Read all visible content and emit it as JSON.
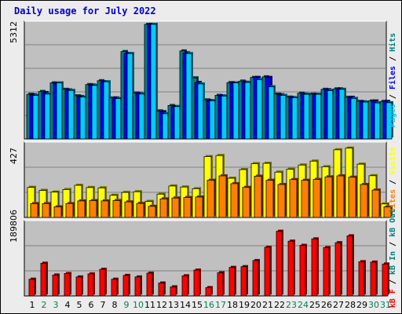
{
  "title": "Daily usage for July 2022",
  "chart_data": [
    {
      "type": "bar",
      "panel": "pages-files-hits",
      "categories": [
        "1",
        "2",
        "3",
        "4",
        "5",
        "6",
        "7",
        "8",
        "9",
        "10",
        "11",
        "12",
        "13",
        "14",
        "15",
        "16",
        "17",
        "18",
        "19",
        "20",
        "21",
        "22",
        "23",
        "24",
        "25",
        "26",
        "27",
        "28",
        "29",
        "30",
        "31"
      ],
      "weekend_days": [
        "2",
        "3",
        "9",
        "10",
        "16",
        "17",
        "23",
        "24",
        "30",
        "31"
      ],
      "ymax_label": "5312",
      "ylim": [
        0,
        5312
      ],
      "series": [
        {
          "name": "Pages",
          "color": "#008080",
          "values": [
            2070,
            2200,
            2600,
            2300,
            2000,
            2520,
            2700,
            1900,
            4050,
            2130,
            5312,
            1300,
            1550,
            4080,
            2830,
            1810,
            2020,
            2610,
            2680,
            2850,
            2880,
            2080,
            1940,
            2120,
            2080,
            2300,
            2320,
            1930,
            1740,
            1760,
            1740
          ]
        },
        {
          "name": "Files",
          "color": "#0000ff",
          "values": [
            2050,
            2150,
            2570,
            2270,
            1970,
            2500,
            2650,
            1900,
            3960,
            2100,
            5312,
            1260,
            1500,
            3990,
            2620,
            1780,
            2000,
            2600,
            2630,
            2850,
            2850,
            2050,
            1920,
            2080,
            2060,
            2280,
            2320,
            1930,
            1720,
            1760,
            1740
          ]
        },
        {
          "name": "Hits",
          "color": "#00ccff",
          "values": [
            2020,
            2080,
            2600,
            2250,
            1940,
            2480,
            2650,
            1870,
            3960,
            2080,
            5312,
            1170,
            1500,
            3960,
            2550,
            1770,
            1990,
            2600,
            2620,
            2750,
            2420,
            2020,
            1910,
            2070,
            2070,
            2240,
            2300,
            1880,
            1710,
            1670,
            1680
          ]
        }
      ]
    },
    {
      "type": "bar",
      "panel": "visits-sites",
      "categories": [
        "1",
        "2",
        "3",
        "4",
        "5",
        "6",
        "7",
        "8",
        "9",
        "10",
        "11",
        "12",
        "13",
        "14",
        "15",
        "16",
        "17",
        "18",
        "19",
        "20",
        "21",
        "22",
        "23",
        "24",
        "25",
        "26",
        "27",
        "28",
        "29",
        "30",
        "31"
      ],
      "ymax_label": "427",
      "ylim": [
        0,
        427
      ],
      "series": [
        {
          "name": "Visits",
          "color": "#ffff00",
          "values": [
            178,
            160,
            150,
            165,
            190,
            177,
            175,
            131,
            148,
            152,
            95,
            138,
            186,
            180,
            170,
            360,
            366,
            232,
            283,
            318,
            320,
            268,
            285,
            310,
            333,
            300,
            400,
            410,
            315,
            247,
            80
          ]
        },
        {
          "name": "Sites",
          "color": "#ff8000",
          "values": [
            82,
            82,
            63,
            82,
            98,
            100,
            98,
            100,
            92,
            83,
            66,
            110,
            115,
            118,
            121,
            220,
            246,
            200,
            178,
            244,
            220,
            195,
            224,
            220,
            225,
            240,
            246,
            238,
            195,
            162,
            63
          ]
        }
      ]
    },
    {
      "type": "bar",
      "panel": "kbytes",
      "categories": [
        "1",
        "2",
        "3",
        "4",
        "5",
        "6",
        "7",
        "8",
        "9",
        "10",
        "11",
        "12",
        "13",
        "14",
        "15",
        "16",
        "17",
        "18",
        "19",
        "20",
        "21",
        "22",
        "23",
        "24",
        "25",
        "26",
        "27",
        "28",
        "29",
        "30",
        "31"
      ],
      "ymax_label": "189806",
      "ylim": [
        0,
        189806
      ],
      "series": [
        {
          "name": "kB F",
          "color": "#ff0000",
          "values": [
            44000,
            86000,
            55000,
            59000,
            50000,
            58000,
            70000,
            44000,
            54000,
            50000,
            60000,
            34000,
            24000,
            53000,
            68000,
            22000,
            61000,
            75000,
            77000,
            93000,
            128000,
            170000,
            144000,
            133000,
            150000,
            127000,
            140000,
            158000,
            90000,
            89000,
            84000
          ]
        }
      ]
    }
  ],
  "legend": {
    "pages": "Pages",
    "files": "Files",
    "hits": "Hits",
    "visits": "Visits",
    "sites": "Sites",
    "kb_f": "kB F",
    "kb_in": "kB In",
    "kb_out": "kB Out",
    "sep": " / "
  }
}
